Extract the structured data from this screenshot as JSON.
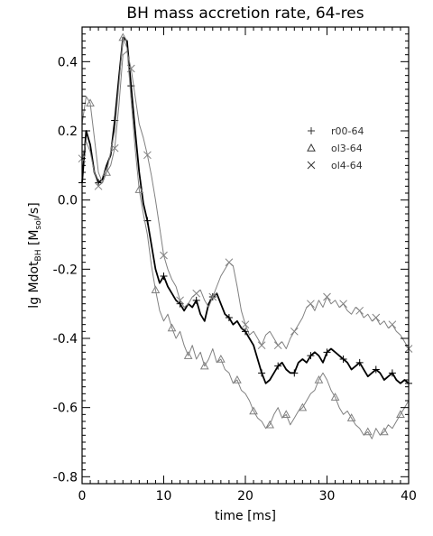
{
  "chart_data": {
    "type": "line",
    "title": "BH mass accretion rate, 64-res",
    "xlabel": "time [ms]",
    "ylabel": {
      "main": "lg Mdot",
      "sub1": "BH",
      "mid": " [M",
      "sub2": "sol",
      "end": "/s]"
    },
    "xlim": [
      0,
      40
    ],
    "ylim": [
      -0.82,
      0.5
    ],
    "xticks": [
      0,
      10,
      20,
      30,
      40
    ],
    "xtick_labels": [
      "0",
      "10",
      "20",
      "30",
      "40"
    ],
    "yticks": [
      -0.8,
      -0.6,
      -0.4,
      -0.2,
      0.0,
      0.2,
      0.4
    ],
    "ytick_labels": [
      "-0.8",
      "-0.6",
      "-0.4",
      "-0.2",
      "0.0",
      "0.2",
      "0.4"
    ],
    "legend_position": "upper-right",
    "series": [
      {
        "name": "r00-64",
        "marker": "plus",
        "color": "#000000",
        "x": [
          0,
          0.5,
          1,
          1.5,
          2,
          2.5,
          3,
          3.5,
          4,
          4.5,
          5,
          5.5,
          6,
          6.5,
          7,
          7.5,
          8,
          8.5,
          9,
          9.5,
          10,
          10.5,
          11,
          11.5,
          12,
          12.5,
          13,
          13.5,
          14,
          14.5,
          15,
          15.5,
          16,
          16.5,
          17,
          17.5,
          18,
          18.5,
          19,
          19.5,
          20,
          20.5,
          21,
          21.5,
          22,
          22.5,
          23,
          23.5,
          24,
          24.5,
          25,
          25.5,
          26,
          26.5,
          27,
          27.5,
          28,
          28.5,
          29,
          29.5,
          30,
          30.5,
          31,
          31.5,
          32,
          32.5,
          33,
          33.5,
          34,
          34.5,
          35,
          35.5,
          36,
          36.5,
          37,
          37.5,
          38,
          38.5,
          39,
          39.5,
          40
        ],
        "y": [
          0.05,
          0.2,
          0.16,
          0.08,
          0.05,
          0.06,
          0.1,
          0.13,
          0.23,
          0.35,
          0.47,
          0.46,
          0.33,
          0.2,
          0.08,
          -0.01,
          -0.06,
          -0.13,
          -0.2,
          -0.24,
          -0.22,
          -0.25,
          -0.27,
          -0.29,
          -0.3,
          -0.32,
          -0.3,
          -0.31,
          -0.29,
          -0.33,
          -0.35,
          -0.3,
          -0.28,
          -0.27,
          -0.3,
          -0.33,
          -0.34,
          -0.36,
          -0.35,
          -0.37,
          -0.38,
          -0.4,
          -0.42,
          -0.46,
          -0.5,
          -0.53,
          -0.52,
          -0.5,
          -0.48,
          -0.47,
          -0.49,
          -0.5,
          -0.5,
          -0.47,
          -0.46,
          -0.47,
          -0.45,
          -0.44,
          -0.45,
          -0.47,
          -0.44,
          -0.43,
          -0.44,
          -0.45,
          -0.46,
          -0.47,
          -0.49,
          -0.48,
          -0.47,
          -0.49,
          -0.51,
          -0.5,
          -0.49,
          -0.5,
          -0.52,
          -0.51,
          -0.5,
          -0.52,
          -0.53,
          -0.52,
          -0.53
        ]
      },
      {
        "name": "ol3-64",
        "marker": "triangle",
        "color": "#808080",
        "x": [
          0,
          0.5,
          1,
          1.5,
          2,
          2.5,
          3,
          3.5,
          4,
          4.5,
          5,
          5.5,
          6,
          6.5,
          7,
          7.5,
          8,
          8.5,
          9,
          9.5,
          10,
          10.5,
          11,
          11.5,
          12,
          12.5,
          13,
          13.5,
          14,
          14.5,
          15,
          15.5,
          16,
          16.5,
          17,
          17.5,
          18,
          18.5,
          19,
          19.5,
          20,
          20.5,
          21,
          21.5,
          22,
          22.5,
          23,
          23.5,
          24,
          24.5,
          25,
          25.5,
          26,
          26.5,
          27,
          27.5,
          28,
          28.5,
          29,
          29.5,
          30,
          30.5,
          31,
          31.5,
          32,
          32.5,
          33,
          33.5,
          34,
          34.5,
          35,
          35.5,
          36,
          36.5,
          37,
          37.5,
          38,
          38.5,
          39,
          39.5,
          40
        ],
        "y": [
          0.22,
          0.3,
          0.28,
          0.18,
          0.08,
          0.05,
          0.08,
          0.14,
          0.2,
          0.33,
          0.47,
          0.44,
          0.29,
          0.15,
          0.03,
          -0.04,
          -0.1,
          -0.19,
          -0.26,
          -0.32,
          -0.35,
          -0.33,
          -0.37,
          -0.4,
          -0.38,
          -0.42,
          -0.45,
          -0.42,
          -0.46,
          -0.44,
          -0.48,
          -0.46,
          -0.43,
          -0.47,
          -0.46,
          -0.49,
          -0.5,
          -0.53,
          -0.52,
          -0.55,
          -0.56,
          -0.58,
          -0.61,
          -0.63,
          -0.64,
          -0.66,
          -0.65,
          -0.62,
          -0.6,
          -0.63,
          -0.62,
          -0.65,
          -0.63,
          -0.61,
          -0.6,
          -0.58,
          -0.56,
          -0.55,
          -0.52,
          -0.5,
          -0.52,
          -0.55,
          -0.57,
          -0.6,
          -0.62,
          -0.61,
          -0.63,
          -0.65,
          -0.66,
          -0.68,
          -0.67,
          -0.69,
          -0.66,
          -0.68,
          -0.67,
          -0.65,
          -0.66,
          -0.64,
          -0.62,
          -0.6,
          -0.58
        ]
      },
      {
        "name": "ol4-64",
        "marker": "x",
        "color": "#808080",
        "x": [
          0,
          0.5,
          1,
          1.5,
          2,
          2.5,
          3,
          3.5,
          4,
          4.5,
          5,
          5.5,
          6,
          6.5,
          7,
          7.5,
          8,
          8.5,
          9,
          9.5,
          10,
          10.5,
          11,
          11.5,
          12,
          12.5,
          13,
          13.5,
          14,
          14.5,
          15,
          15.5,
          16,
          16.5,
          17,
          17.5,
          18,
          18.5,
          19,
          19.5,
          20,
          20.5,
          21,
          21.5,
          22,
          22.5,
          23,
          23.5,
          24,
          24.5,
          25,
          25.5,
          26,
          26.5,
          27,
          27.5,
          28,
          28.5,
          29,
          29.5,
          30,
          30.5,
          31,
          31.5,
          32,
          32.5,
          33,
          33.5,
          34,
          34.5,
          35,
          35.5,
          36,
          36.5,
          37,
          37.5,
          38,
          38.5,
          39,
          39.5,
          40
        ],
        "y": [
          0.12,
          0.17,
          0.14,
          0.08,
          0.04,
          0.05,
          0.08,
          0.1,
          0.15,
          0.27,
          0.42,
          0.43,
          0.38,
          0.3,
          0.22,
          0.18,
          0.13,
          0.07,
          0.0,
          -0.08,
          -0.16,
          -0.2,
          -0.23,
          -0.25,
          -0.29,
          -0.31,
          -0.3,
          -0.28,
          -0.27,
          -0.26,
          -0.29,
          -0.31,
          -0.28,
          -0.25,
          -0.22,
          -0.2,
          -0.18,
          -0.19,
          -0.25,
          -0.32,
          -0.36,
          -0.39,
          -0.38,
          -0.4,
          -0.42,
          -0.39,
          -0.38,
          -0.4,
          -0.42,
          -0.41,
          -0.43,
          -0.4,
          -0.38,
          -0.36,
          -0.34,
          -0.31,
          -0.3,
          -0.32,
          -0.29,
          -0.31,
          -0.28,
          -0.3,
          -0.29,
          -0.31,
          -0.3,
          -0.32,
          -0.33,
          -0.31,
          -0.32,
          -0.34,
          -0.33,
          -0.35,
          -0.34,
          -0.36,
          -0.35,
          -0.37,
          -0.36,
          -0.38,
          -0.39,
          -0.41,
          -0.43
        ]
      }
    ]
  }
}
